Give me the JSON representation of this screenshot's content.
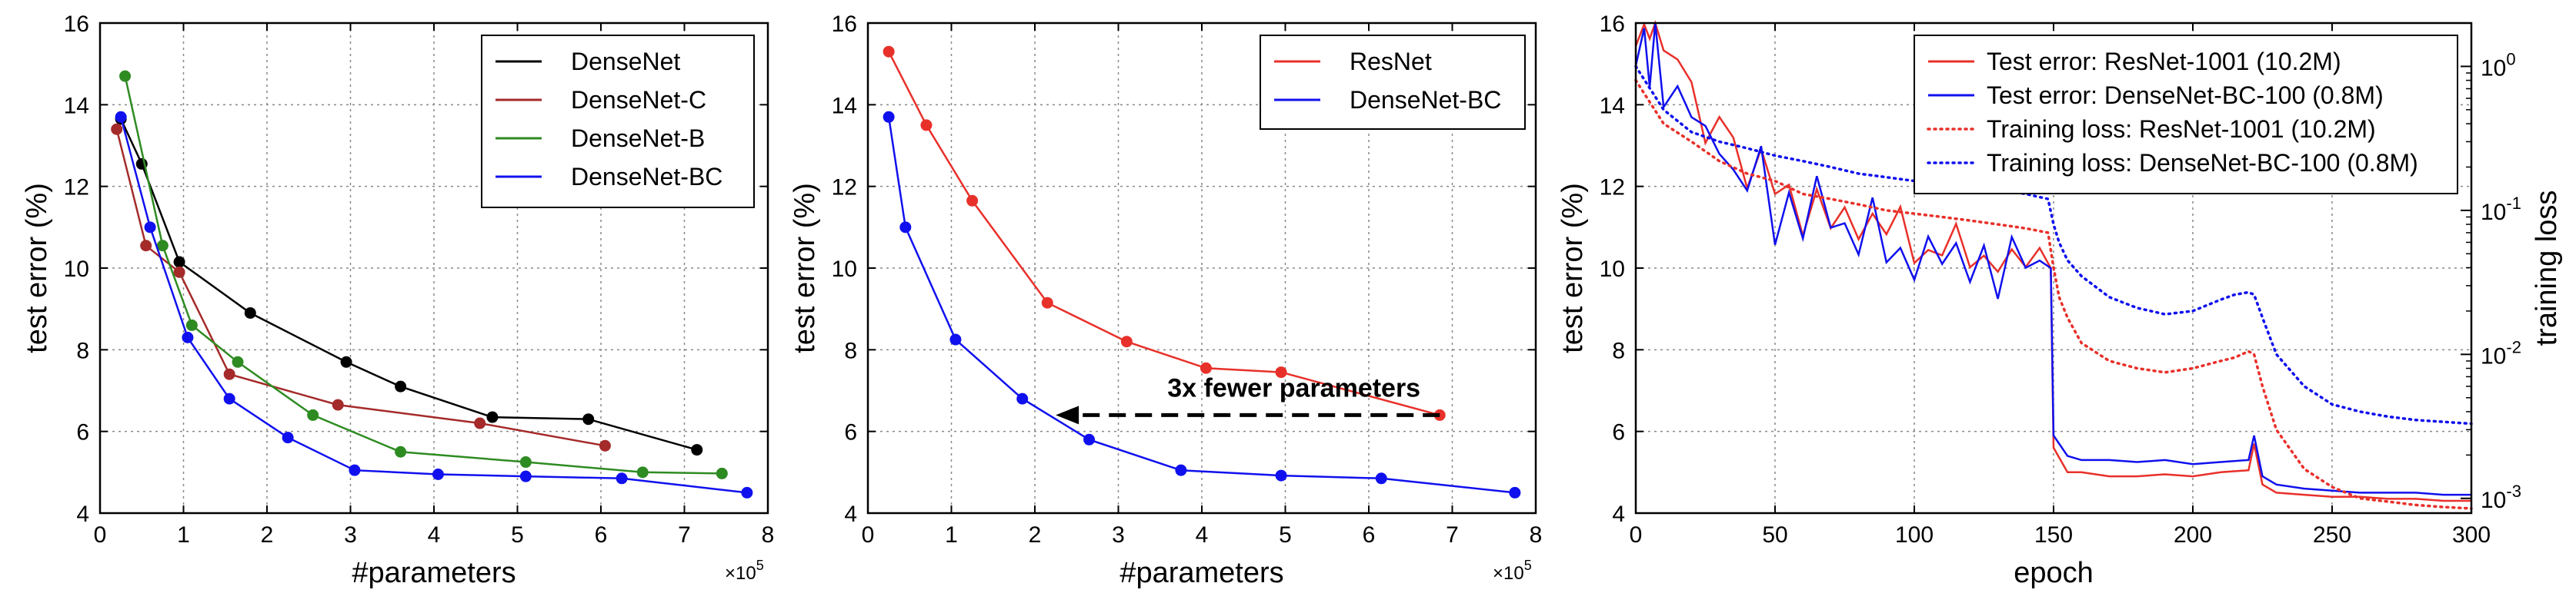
{
  "chart_data": [
    {
      "type": "line",
      "xlabel": "#parameters",
      "ylabel": "test error (%)",
      "x_multiplier_label": "×10",
      "x_multiplier_exp": "5",
      "xlim": [
        0,
        8
      ],
      "ylim": [
        4,
        16
      ],
      "xticks": [
        "0",
        "1",
        "2",
        "3",
        "4",
        "5",
        "6",
        "7",
        "8"
      ],
      "yticks": [
        "4",
        "6",
        "8",
        "10",
        "12",
        "14",
        "16"
      ],
      "grid": true,
      "legend_position": "top-right",
      "series": [
        {
          "name": "DenseNet",
          "color": "#000000",
          "x": [
            0.25,
            0.5,
            0.95,
            1.8,
            2.95,
            3.6,
            4.7,
            5.85,
            7.15
          ],
          "y": [
            13.65,
            12.55,
            10.15,
            8.9,
            7.7,
            7.1,
            6.35,
            6.3,
            5.55
          ]
        },
        {
          "name": "DenseNet-C",
          "color": "#a52a2a",
          "x": [
            0.2,
            0.55,
            0.95,
            1.55,
            2.85,
            4.55,
            6.05
          ],
          "y": [
            13.4,
            10.55,
            9.9,
            7.4,
            6.65,
            6.2,
            5.65
          ]
        },
        {
          "name": "DenseNet-B",
          "color": "#2e8b22",
          "x": [
            0.3,
            0.75,
            1.1,
            1.65,
            2.55,
            3.6,
            5.1,
            6.5,
            7.45
          ],
          "y": [
            14.7,
            10.55,
            8.6,
            7.7,
            6.4,
            5.5,
            5.25,
            5.0,
            4.97
          ]
        },
        {
          "name": "DenseNet-BC",
          "color": "#1010ee",
          "x": [
            0.25,
            0.6,
            1.05,
            1.55,
            2.25,
            3.05,
            4.05,
            5.1,
            6.25,
            7.75
          ],
          "y": [
            13.7,
            11.0,
            8.3,
            6.8,
            5.85,
            5.05,
            4.95,
            4.9,
            4.85,
            4.5
          ]
        }
      ]
    },
    {
      "type": "line",
      "xlabel": "#parameters",
      "ylabel": "test error (%)",
      "x_multiplier_label": "×10",
      "x_multiplier_exp": "5",
      "xlim": [
        0,
        8
      ],
      "ylim": [
        4,
        16
      ],
      "xticks": [
        "0",
        "1",
        "2",
        "3",
        "4",
        "5",
        "6",
        "7",
        "8"
      ],
      "yticks": [
        "4",
        "6",
        "8",
        "10",
        "12",
        "14",
        "16"
      ],
      "grid": true,
      "legend_position": "top-right",
      "annotation": {
        "text": "3x fewer parameters",
        "arrow_from": [
          6.85,
          6.4
        ],
        "arrow_to": [
          2.25,
          6.4
        ]
      },
      "series": [
        {
          "name": "ResNet",
          "color": "#e8302a",
          "x": [
            0.25,
            0.7,
            1.25,
            2.15,
            3.1,
            4.05,
            4.95,
            6.85
          ],
          "y": [
            15.3,
            13.5,
            11.65,
            9.15,
            8.2,
            7.55,
            7.45,
            6.4
          ]
        },
        {
          "name": "DenseNet-BC",
          "color": "#1010ee",
          "x": [
            0.25,
            0.45,
            1.05,
            1.85,
            2.65,
            3.75,
            4.95,
            6.15,
            7.75
          ],
          "y": [
            13.7,
            11.0,
            8.25,
            6.8,
            5.8,
            5.05,
            4.92,
            4.85,
            4.5
          ]
        }
      ]
    },
    {
      "type": "line",
      "xlabel": "epoch",
      "ylabel": "test error (%)",
      "y2label": "training loss",
      "xlim": [
        0,
        300
      ],
      "ylim": [
        4,
        16
      ],
      "y2scale": "log",
      "y2lim": [
        0.00079,
        2.0
      ],
      "xticks": [
        "0",
        "50",
        "100",
        "150",
        "200",
        "250",
        "300"
      ],
      "yticks": [
        "4",
        "6",
        "8",
        "10",
        "12",
        "14",
        "16"
      ],
      "y2ticks_base": "10",
      "y2ticks_exp": [
        "0",
        "-1",
        "-2",
        "-3"
      ],
      "grid": true,
      "legend_position": "top-right",
      "legend_style": "solid, solid, dotted, dotted",
      "series": [
        {
          "name": "Test error: ResNet-1001 (10.2M)",
          "color": "#e8302a",
          "axis": "left",
          "style": "solid",
          "x": [
            0,
            3,
            5,
            7,
            10,
            15,
            20,
            25,
            30,
            35,
            40,
            45,
            50,
            55,
            60,
            65,
            70,
            75,
            80,
            85,
            90,
            95,
            100,
            105,
            110,
            115,
            120,
            125,
            130,
            135,
            140,
            145,
            149,
            150,
            155,
            160,
            170,
            180,
            190,
            200,
            210,
            220,
            222,
            225,
            230,
            240,
            250,
            260,
            270,
            280,
            290,
            300
          ],
          "y": [
            15.0,
            16.0,
            15.5,
            16.0,
            15.0,
            15.5,
            14.5,
            13.5,
            14.0,
            13.0,
            12.5,
            13.0,
            11.5,
            12.5,
            11.0,
            12.0,
            10.5,
            11.5,
            11.0,
            11.8,
            10.8,
            11.2,
            10.5,
            11.0,
            10.2,
            10.8,
            10.0,
            10.5,
            10.0,
            10.3,
            10.0,
            10.2,
            10.0,
            5.6,
            5.0,
            5.0,
            4.9,
            4.9,
            4.95,
            4.9,
            5.0,
            5.05,
            5.7,
            4.7,
            4.5,
            4.45,
            4.4,
            4.4,
            4.35,
            4.35,
            4.3,
            4.3
          ]
        },
        {
          "name": "Test error: DenseNet-BC-100 (0.8M)",
          "color": "#1010ee",
          "axis": "left",
          "style": "solid",
          "x": [
            0,
            3,
            5,
            7,
            10,
            15,
            20,
            25,
            30,
            35,
            40,
            45,
            50,
            55,
            60,
            65,
            70,
            75,
            80,
            85,
            90,
            95,
            100,
            105,
            110,
            115,
            120,
            125,
            130,
            135,
            140,
            145,
            149,
            150,
            155,
            160,
            170,
            180,
            190,
            200,
            210,
            220,
            222,
            225,
            230,
            240,
            250,
            260,
            270,
            280,
            290,
            300
          ],
          "y": [
            15.5,
            16.0,
            14.5,
            16.0,
            14.5,
            15.0,
            14.0,
            13.5,
            13.0,
            12.5,
            12.0,
            12.5,
            11.0,
            12.0,
            10.8,
            11.8,
            10.5,
            11.2,
            10.5,
            11.5,
            10.2,
            11.0,
            10.0,
            11.2,
            10.0,
            11.0,
            10.2,
            10.5,
            9.8,
            10.5,
            10.0,
            10.3,
            10.0,
            5.9,
            5.4,
            5.3,
            5.3,
            5.25,
            5.3,
            5.2,
            5.25,
            5.3,
            5.9,
            4.9,
            4.7,
            4.6,
            4.55,
            4.5,
            4.5,
            4.5,
            4.45,
            4.45
          ]
        },
        {
          "name": "Training loss: ResNet-1001 (10.2M)",
          "color": "#e8302a",
          "axis": "right",
          "style": "dotted",
          "x": [
            0,
            10,
            20,
            30,
            40,
            50,
            60,
            70,
            80,
            90,
            100,
            110,
            120,
            130,
            140,
            148,
            150,
            152,
            155,
            160,
            170,
            180,
            190,
            200,
            210,
            215,
            220,
            222,
            225,
            230,
            240,
            250,
            260,
            270,
            280,
            290,
            300
          ],
          "y": [
            0.8,
            0.4,
            0.3,
            0.22,
            0.18,
            0.16,
            0.13,
            0.12,
            0.11,
            0.1,
            0.095,
            0.09,
            0.085,
            0.08,
            0.075,
            0.07,
            0.04,
            0.025,
            0.018,
            0.012,
            0.009,
            0.008,
            0.0075,
            0.008,
            0.009,
            0.0095,
            0.0105,
            0.01,
            0.006,
            0.003,
            0.0016,
            0.0012,
            0.001,
            0.00095,
            0.0009,
            0.00087,
            0.00085
          ]
        },
        {
          "name": "Training loss: DenseNet-BC-100 (0.8M)",
          "color": "#1010ee",
          "axis": "right",
          "style": "dotted",
          "x": [
            0,
            10,
            20,
            30,
            40,
            50,
            60,
            70,
            80,
            90,
            100,
            110,
            120,
            130,
            140,
            148,
            150,
            152,
            155,
            160,
            170,
            180,
            190,
            200,
            210,
            215,
            220,
            222,
            225,
            230,
            240,
            250,
            260,
            270,
            280,
            290,
            300
          ],
          "y": [
            1.0,
            0.5,
            0.35,
            0.3,
            0.27,
            0.24,
            0.22,
            0.2,
            0.18,
            0.17,
            0.16,
            0.15,
            0.15,
            0.14,
            0.13,
            0.12,
            0.08,
            0.06,
            0.045,
            0.035,
            0.025,
            0.021,
            0.019,
            0.02,
            0.024,
            0.026,
            0.027,
            0.026,
            0.018,
            0.01,
            0.006,
            0.0045,
            0.004,
            0.0037,
            0.0035,
            0.0034,
            0.0033
          ]
        }
      ]
    }
  ]
}
